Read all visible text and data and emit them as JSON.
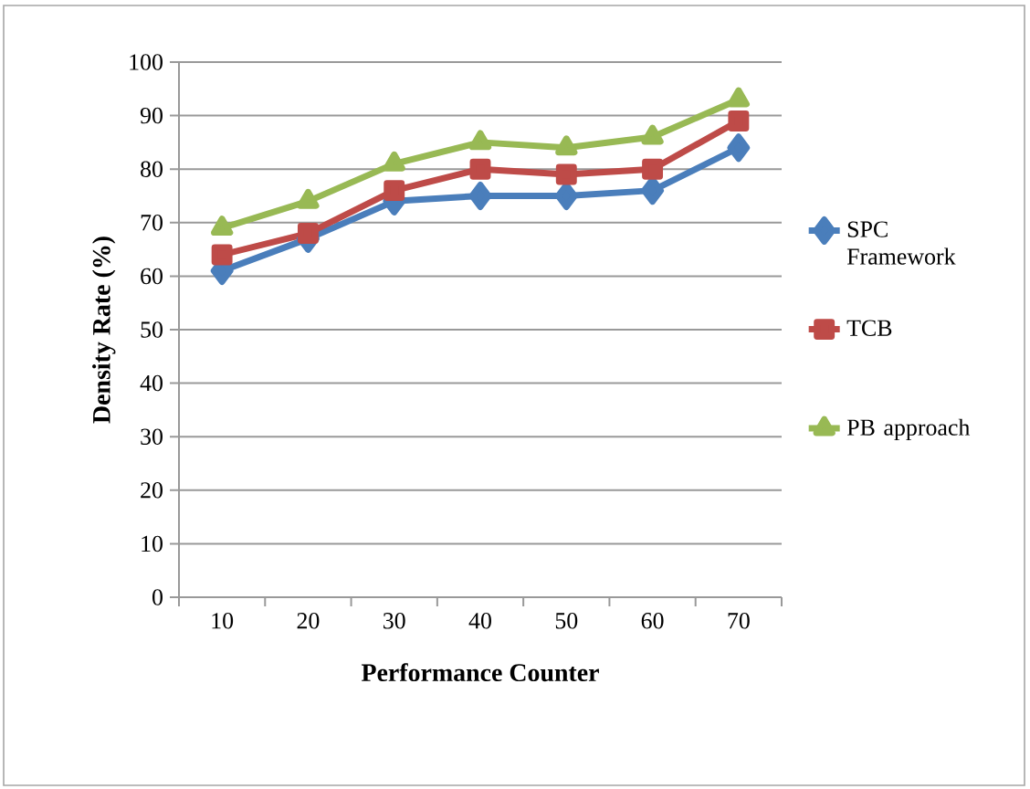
{
  "chart_data": {
    "type": "line",
    "xlabel": "Performance Counter",
    "ylabel": "Density Rate (%)",
    "categories": [
      "10",
      "20",
      "30",
      "40",
      "50",
      "60",
      "70"
    ],
    "series": [
      {
        "name": "SPC Framework",
        "color": "#4a7ebb",
        "marker": "diamond",
        "values": [
          61,
          67,
          74,
          75,
          75,
          76,
          84
        ]
      },
      {
        "name": "TCB",
        "color": "#be4b48",
        "marker": "square",
        "values": [
          64,
          68,
          76,
          80,
          79,
          80,
          89
        ]
      },
      {
        "name": "PB approach",
        "color": "#98b954",
        "marker": "triangle",
        "values": [
          69,
          74,
          81,
          85,
          84,
          86,
          93
        ]
      }
    ],
    "ylim": [
      0,
      100
    ],
    "yticks": [
      0,
      10,
      20,
      30,
      40,
      50,
      60,
      70,
      80,
      90,
      100
    ],
    "grid": "y",
    "legend": "right"
  }
}
